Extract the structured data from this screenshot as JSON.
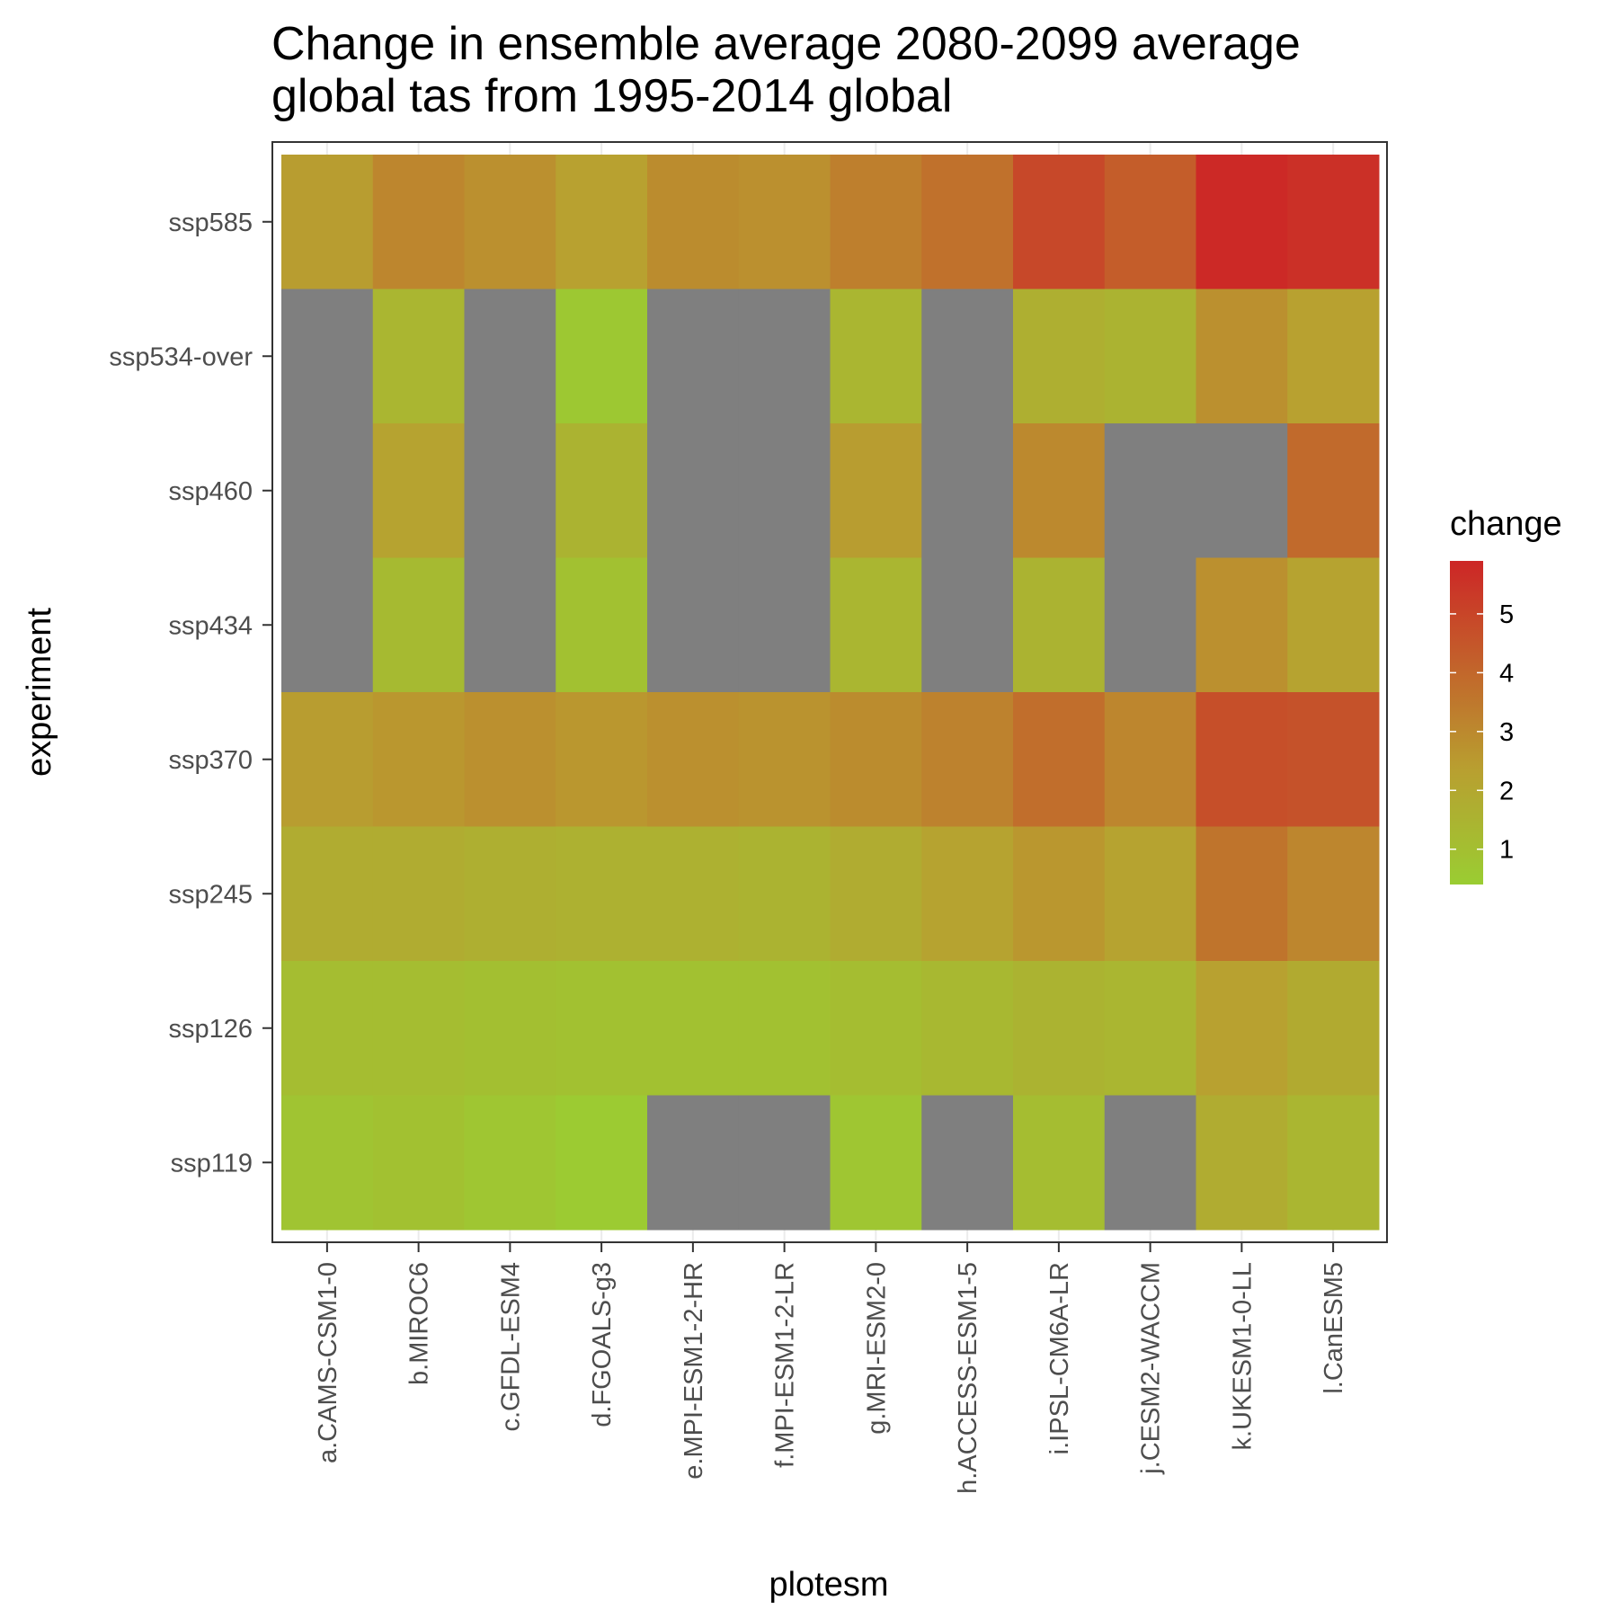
{
  "chart_data": {
    "type": "heatmap",
    "title_lines": [
      "Change in ensemble average 2080-2099 average",
      "global tas from 1995-2014 global"
    ],
    "xlabel": "plotesm",
    "ylabel": "experiment",
    "x": [
      "a.CAMS-CSM1-0",
      "b.MIROC6",
      "c.GFDL-ESM4",
      "d.FGOALS-g3",
      "e.MPI-ESM1-2-HR",
      "f.MPI-ESM1-2-LR",
      "g.MRI-ESM2-0",
      "h.ACCESS-ESM1-5",
      "i.IPSL-CM6A-LR",
      "j.CESM2-WACCM",
      "k.UKESM1-0-LL",
      "l.CanESM5"
    ],
    "y": [
      "ssp585",
      "ssp534-over",
      "ssp460",
      "ssp434",
      "ssp370",
      "ssp245",
      "ssp126",
      "ssp119"
    ],
    "values": [
      [
        2.4,
        3.1,
        2.8,
        2.3,
        2.9,
        2.8,
        3.3,
        3.7,
        4.9,
        4.3,
        5.8,
        5.6
      ],
      [
        null,
        1.4,
        null,
        0.6,
        null,
        null,
        1.4,
        null,
        1.7,
        1.5,
        2.8,
        2.3
      ],
      [
        null,
        2.2,
        null,
        1.5,
        null,
        null,
        2.4,
        null,
        3.0,
        null,
        null,
        3.9
      ],
      [
        null,
        1.2,
        null,
        0.9,
        null,
        null,
        1.4,
        null,
        1.5,
        null,
        2.8,
        2.2
      ],
      [
        2.4,
        2.6,
        2.8,
        2.6,
        2.8,
        2.7,
        2.9,
        3.2,
        3.8,
        3.1,
        4.7,
        4.6
      ],
      [
        1.8,
        1.8,
        1.7,
        1.6,
        1.6,
        1.5,
        1.8,
        2.2,
        2.6,
        2.2,
        3.6,
        3.1
      ],
      [
        1.1,
        1.1,
        1.0,
        0.9,
        0.9,
        0.9,
        1.1,
        1.3,
        1.5,
        1.4,
        2.3,
        1.9
      ],
      [
        0.8,
        0.9,
        0.7,
        0.5,
        null,
        null,
        0.7,
        null,
        1.1,
        null,
        1.8,
        1.4
      ]
    ],
    "missing_color": "#7f7f7f",
    "color_scale": {
      "low_color": "#9acd32",
      "mid_color": "#b8a030",
      "high_color": "#cd2626",
      "min": 0.4,
      "max": 5.9
    },
    "legend": {
      "title": "change",
      "ticks": [
        1,
        2,
        3,
        4,
        5
      ],
      "position": "right"
    },
    "grid": true
  }
}
